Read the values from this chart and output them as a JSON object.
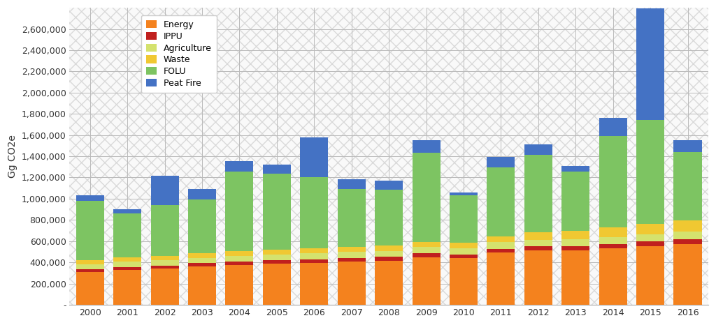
{
  "years": [
    2000,
    2001,
    2002,
    2003,
    2004,
    2005,
    2006,
    2007,
    2008,
    2009,
    2010,
    2011,
    2012,
    2013,
    2014,
    2015,
    2016
  ],
  "energy": [
    310000,
    330000,
    340000,
    360000,
    375000,
    385000,
    395000,
    405000,
    415000,
    450000,
    440000,
    490000,
    510000,
    510000,
    530000,
    550000,
    570000
  ],
  "ippu": [
    25000,
    28000,
    30000,
    32000,
    33000,
    34000,
    35000,
    36000,
    36000,
    36000,
    36000,
    38000,
    40000,
    42000,
    44000,
    46000,
    48000
  ],
  "agriculture": [
    45000,
    47000,
    48000,
    50000,
    52000,
    53000,
    55000,
    56000,
    57000,
    58000,
    59000,
    61000,
    63000,
    65000,
    67000,
    69000,
    71000
  ],
  "waste": [
    38000,
    39000,
    40000,
    42000,
    44000,
    45000,
    46000,
    47000,
    48000,
    49000,
    49000,
    58000,
    68000,
    78000,
    88000,
    98000,
    108000
  ],
  "folu": [
    560000,
    420000,
    480000,
    510000,
    750000,
    720000,
    670000,
    545000,
    530000,
    840000,
    450000,
    650000,
    730000,
    560000,
    860000,
    980000,
    640000
  ],
  "peat_fire": [
    55000,
    35000,
    280000,
    95000,
    100000,
    85000,
    380000,
    95000,
    85000,
    120000,
    25000,
    95000,
    100000,
    55000,
    175000,
    1050000,
    115000
  ],
  "colors": {
    "energy": "#F4821E",
    "ippu": "#C0201E",
    "agriculture": "#D4E26E",
    "waste": "#F0C832",
    "folu": "#7DC462",
    "peat_fire": "#4472C4"
  },
  "ylabel": "Gg CO2e",
  "ylim": [
    0,
    2800000
  ],
  "yticks": [
    0,
    200000,
    400000,
    600000,
    800000,
    1000000,
    1200000,
    1400000,
    1600000,
    1800000,
    2000000,
    2200000,
    2400000,
    2600000
  ],
  "ytick_labels": [
    "-",
    "200,000",
    "400,000",
    "600,000",
    "800,000",
    "1,000,000",
    "1,200,000",
    "1,400,000",
    "1,600,000",
    "1,800,000",
    "2,000,000",
    "2,200,000",
    "2,400,000",
    "2,600,000"
  ],
  "background_color": "#FFFFFF",
  "grid_color": "#CCCCCC",
  "hatch_color": "#DDDDDD",
  "legend_labels": [
    "Energy",
    "IPPU",
    "Agriculture",
    "Waste",
    "FOLU",
    "Peat Fire"
  ],
  "figsize": [
    10.24,
    4.66
  ],
  "dpi": 100
}
